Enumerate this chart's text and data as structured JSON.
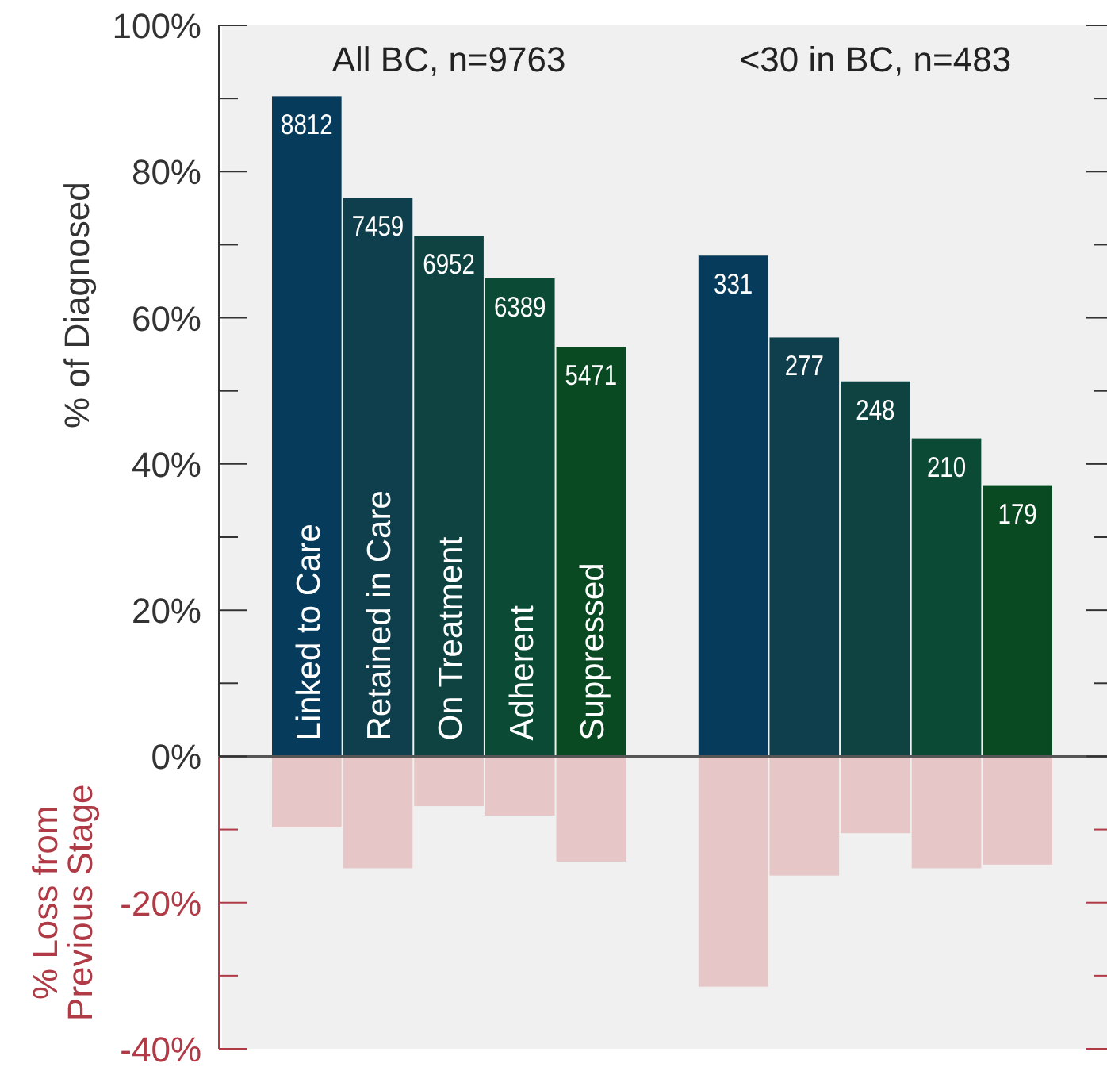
{
  "chart_data": {
    "type": "bar",
    "stacked": true,
    "ylabel": "% of Diagnosed",
    "categories": [
      "Linked to Care",
      "Retained in Care",
      "On Treatment",
      "Adherent",
      "Suppressed",
      null,
      null,
      null,
      null,
      null,
      null
    ],
    "series": [
      {
        "colors": [
          "#063b5c",
          "#0f3f4c",
          "#0e4342",
          "#0b4a35",
          "#0a4a22",
          null,
          "#063b5c",
          "#0f3f4c",
          "#0e4342",
          "#0b4a35",
          "#0a4a22"
        ],
        "values": [
          90.3,
          76.4,
          71.2,
          65.4,
          56.0,
          null,
          68.5,
          57.3,
          51.3,
          43.5,
          37.1
        ]
      },
      {
        "name": "% Loss from Previous Stage",
        "color": "#e6c6c6",
        "values": [
          -9.7,
          -15.3,
          -6.8,
          -8.1,
          -14.4,
          null,
          -31.5,
          -16.3,
          -10.5,
          -15.3,
          -14.8
        ]
      }
    ],
    "ylim": [
      -40,
      100
    ],
    "yticks": [
      {
        "value": -40,
        "label": "-40%"
      },
      {
        "value": -30,
        "label": null
      },
      {
        "value": -20,
        "label": "-20%"
      },
      {
        "value": -10,
        "label": null
      },
      {
        "value": 0,
        "label": "0%"
      },
      {
        "value": 10,
        "label": null
      },
      {
        "value": 20,
        "label": "20%"
      },
      {
        "value": 30,
        "label": null
      },
      {
        "value": 40,
        "label": "40%"
      },
      {
        "value": 50,
        "label": null
      },
      {
        "value": 60,
        "label": "60%"
      },
      {
        "value": 70,
        "label": null
      },
      {
        "value": 80,
        "label": "80%"
      },
      {
        "value": 90,
        "label": null
      },
      {
        "value": 100,
        "label": "100%"
      }
    ],
    "annotations": [
      "All BC, n=9763",
      "<30 in BC, n=483",
      {
        "text": "8812",
        "x": "Linked to Care",
        "y": 90.3
      },
      {
        "text": "7459",
        "x": "Retained in Care",
        "y": 76.4
      },
      {
        "text": "6952",
        "x": "On Treatment",
        "y": 71.2
      },
      {
        "text": "6389",
        "x": "Adherent",
        "y": 65.4
      },
      {
        "text": "5471",
        "x": "Suppressed",
        "y": 56.0
      },
      {
        "text": "331",
        "y": 68.5
      },
      {
        "text": "277",
        "y": 57.3
      },
      {
        "text": "248",
        "y": 51.3
      },
      {
        "text": "210",
        "y": 43.5
      },
      {
        "text": "179",
        "y": 37.1
      }
    ],
    "grid": false
  }
}
